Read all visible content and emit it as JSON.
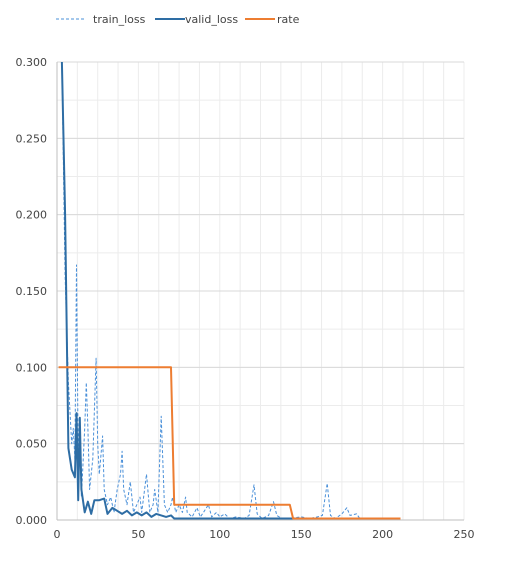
{
  "chart_data": {
    "type": "line",
    "title": "",
    "xlabel": "",
    "ylabel": "",
    "xlim": [
      0,
      250
    ],
    "ylim": [
      0,
      0.3
    ],
    "x_ticks": [
      0,
      50,
      100,
      150,
      200,
      250
    ],
    "x_tick_labels": [
      "0",
      "50",
      "100",
      "150",
      "200",
      "250"
    ],
    "y_ticks": [
      0,
      0.05,
      0.1,
      0.15,
      0.2,
      0.25,
      0.3
    ],
    "y_tick_labels": [
      "0.000",
      "0.050",
      "0.100",
      "0.150",
      "0.200",
      "0.250",
      "0.300"
    ],
    "grid": true,
    "legend_position": "top-left",
    "series": [
      {
        "name": "train_loss",
        "color": "#4a90d9",
        "dash": "dashed",
        "points": [
          [
            3,
            0.3
          ],
          [
            5,
            0.16
          ],
          [
            7,
            0.09
          ],
          [
            9,
            0.05
          ],
          [
            10,
            0.06
          ],
          [
            11,
            0.04
          ],
          [
            12,
            0.167
          ],
          [
            13,
            0.04
          ],
          [
            14,
            0.05
          ],
          [
            15,
            0.015
          ],
          [
            17,
            0.06
          ],
          [
            18,
            0.09
          ],
          [
            19,
            0.06
          ],
          [
            20,
            0.02
          ],
          [
            22,
            0.04
          ],
          [
            24,
            0.106
          ],
          [
            25,
            0.05
          ],
          [
            26,
            0.03
          ],
          [
            28,
            0.055
          ],
          [
            29,
            0.02
          ],
          [
            31,
            0.01
          ],
          [
            33,
            0.015
          ],
          [
            35,
            0.005
          ],
          [
            37,
            0.02
          ],
          [
            39,
            0.03
          ],
          [
            40,
            0.045
          ],
          [
            41,
            0.02
          ],
          [
            43,
            0.01
          ],
          [
            45,
            0.025
          ],
          [
            47,
            0.005
          ],
          [
            49,
            0.01
          ],
          [
            51,
            0.015
          ],
          [
            52,
            0.005
          ],
          [
            55,
            0.03
          ],
          [
            57,
            0.005
          ],
          [
            59,
            0.01
          ],
          [
            60,
            0.02
          ],
          [
            62,
            0.005
          ],
          [
            64,
            0.068
          ],
          [
            66,
            0.01
          ],
          [
            68,
            0.005
          ],
          [
            70,
            0.01
          ],
          [
            71,
            0.015
          ],
          [
            73,
            0.005
          ],
          [
            75,
            0.01
          ],
          [
            77,
            0.005
          ],
          [
            79,
            0.015
          ],
          [
            80,
            0.005
          ],
          [
            83,
            0.002
          ],
          [
            86,
            0.008
          ],
          [
            88,
            0.002
          ],
          [
            90,
            0.005
          ],
          [
            93,
            0.01
          ],
          [
            95,
            0.002
          ],
          [
            98,
            0.005
          ],
          [
            100,
            0.002
          ],
          [
            103,
            0.004
          ],
          [
            106,
            0.001
          ],
          [
            110,
            0.002
          ],
          [
            115,
            0.001
          ],
          [
            118,
            0.003
          ],
          [
            121,
            0.023
          ],
          [
            123,
            0.004
          ],
          [
            126,
            0.001
          ],
          [
            130,
            0.003
          ],
          [
            133,
            0.012
          ],
          [
            135,
            0.003
          ],
          [
            138,
            0.001
          ],
          [
            142,
            0.001
          ],
          [
            150,
            0.002
          ],
          [
            155,
            0.001
          ],
          [
            160,
            0.002
          ],
          [
            163,
            0.003
          ],
          [
            166,
            0.024
          ],
          [
            168,
            0.003
          ],
          [
            171,
            0.001
          ],
          [
            175,
            0.004
          ],
          [
            178,
            0.008
          ],
          [
            180,
            0.003
          ],
          [
            184,
            0.004
          ],
          [
            186,
            0.001
          ],
          [
            190,
            0.001
          ],
          [
            195,
            0.001
          ],
          [
            200,
            0.001
          ],
          [
            206,
            0.001
          ],
          [
            211,
            0.001
          ]
        ]
      },
      {
        "name": "valid_loss",
        "color": "#2e6da4",
        "dash": "solid",
        "points": [
          [
            3,
            0.3
          ],
          [
            5,
            0.2
          ],
          [
            7,
            0.047
          ],
          [
            9,
            0.033
          ],
          [
            11,
            0.028
          ],
          [
            12,
            0.07
          ],
          [
            13,
            0.013
          ],
          [
            14,
            0.067
          ],
          [
            15,
            0.02
          ],
          [
            17,
            0.005
          ],
          [
            19,
            0.012
          ],
          [
            21,
            0.004
          ],
          [
            23,
            0.013
          ],
          [
            26,
            0.013
          ],
          [
            29,
            0.014
          ],
          [
            31,
            0.004
          ],
          [
            34,
            0.008
          ],
          [
            37,
            0.006
          ],
          [
            40,
            0.004
          ],
          [
            43,
            0.006
          ],
          [
            46,
            0.003
          ],
          [
            49,
            0.005
          ],
          [
            52,
            0.003
          ],
          [
            55,
            0.005
          ],
          [
            58,
            0.002
          ],
          [
            61,
            0.004
          ],
          [
            64,
            0.003
          ],
          [
            67,
            0.002
          ],
          [
            70,
            0.003
          ],
          [
            72,
            0.001
          ],
          [
            80,
            0.001
          ],
          [
            100,
            0.001
          ],
          [
            150,
            0.001
          ],
          [
            190,
            0.001
          ],
          [
            211,
            0.001
          ]
        ]
      },
      {
        "name": "rate",
        "color": "#ed7d31",
        "dash": "solid",
        "points": [
          [
            1,
            0.1
          ],
          [
            70,
            0.1
          ],
          [
            72,
            0.01
          ],
          [
            143,
            0.01
          ],
          [
            145,
            0.001
          ],
          [
            211,
            0.001
          ]
        ]
      }
    ]
  }
}
